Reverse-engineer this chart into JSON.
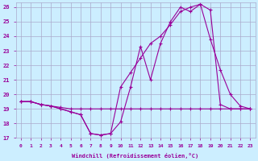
{
  "xlabel": "Windchill (Refroidissement éolien,°C)",
  "background_color": "#cceeff",
  "grid_color": "#aaaacc",
  "line_color": "#990099",
  "xlim": [
    -0.5,
    23.5
  ],
  "ylim": [
    17,
    26.3
  ],
  "yticks": [
    17,
    18,
    19,
    20,
    21,
    22,
    23,
    24,
    25,
    26
  ],
  "xticks": [
    0,
    1,
    2,
    3,
    4,
    5,
    6,
    7,
    8,
    9,
    10,
    11,
    12,
    13,
    14,
    15,
    16,
    17,
    18,
    19,
    20,
    21,
    22,
    23
  ],
  "series1_x": [
    0,
    1,
    2,
    3,
    4,
    5,
    6,
    7,
    8,
    9,
    10,
    11,
    12,
    13,
    14,
    15,
    16,
    17,
    18,
    19,
    20,
    21,
    22,
    23
  ],
  "series1_y": [
    19.5,
    19.5,
    19.3,
    19.2,
    19.1,
    19.0,
    19.0,
    19.0,
    19.0,
    19.0,
    19.0,
    19.0,
    19.0,
    19.0,
    19.0,
    19.0,
    19.0,
    19.0,
    19.0,
    19.0,
    19.0,
    19.0,
    19.0,
    19.0
  ],
  "series2_x": [
    0,
    1,
    2,
    3,
    4,
    5,
    6,
    7,
    8,
    9,
    10,
    11,
    12,
    13,
    14,
    15,
    16,
    17,
    18,
    19,
    20,
    21,
    22,
    23
  ],
  "series2_y": [
    19.5,
    19.5,
    19.3,
    19.2,
    19.0,
    18.8,
    18.6,
    17.3,
    17.2,
    17.3,
    18.1,
    20.5,
    23.3,
    21.0,
    23.5,
    25.0,
    26.0,
    25.7,
    26.2,
    23.8,
    21.7,
    20.0,
    19.2,
    19.0
  ],
  "series3_x": [
    0,
    1,
    2,
    3,
    4,
    5,
    6,
    7,
    8,
    9,
    10,
    11,
    12,
    13,
    14,
    15,
    16,
    17,
    18,
    19,
    20,
    21,
    22,
    23
  ],
  "series3_y": [
    19.5,
    19.5,
    19.3,
    19.2,
    19.0,
    18.8,
    18.6,
    17.3,
    17.2,
    17.3,
    20.5,
    21.5,
    22.5,
    23.5,
    24.0,
    24.8,
    25.7,
    26.0,
    26.2,
    25.8,
    19.3,
    19.0,
    19.0,
    19.0
  ]
}
